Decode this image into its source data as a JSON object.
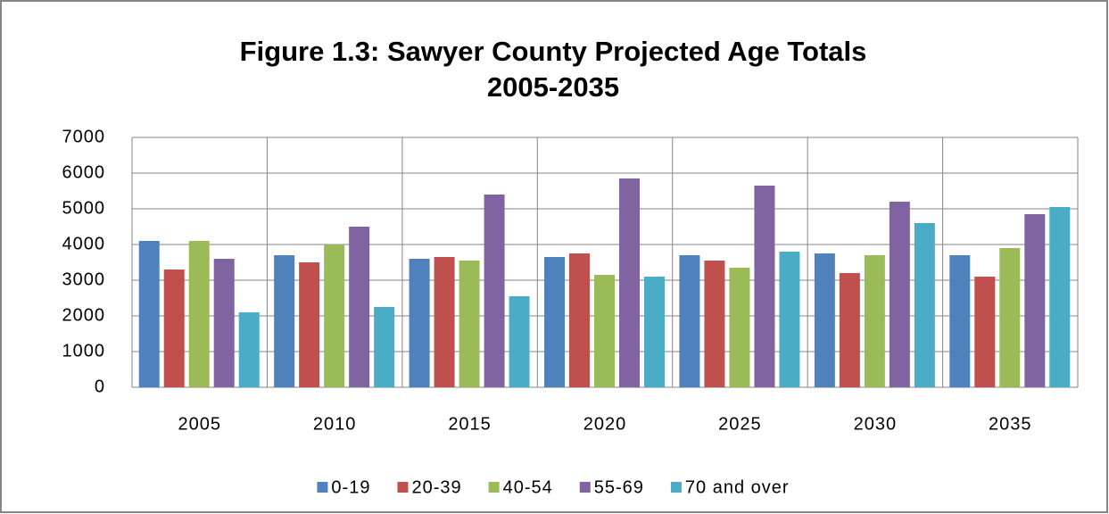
{
  "chart_data": {
    "type": "bar",
    "title": "Figure 1.3: Sawyer County Projected Age Totals",
    "subtitle": "2005-2035",
    "categories": [
      "2005",
      "2010",
      "2015",
      "2020",
      "2025",
      "2030",
      "2035"
    ],
    "series": [
      {
        "name": "0-19",
        "color": "#4f81bd",
        "values": [
          4100,
          3700,
          3600,
          3650,
          3700,
          3750,
          3700
        ]
      },
      {
        "name": "20-39",
        "color": "#c0504d",
        "values": [
          3300,
          3500,
          3650,
          3750,
          3550,
          3200,
          3100
        ]
      },
      {
        "name": "40-54",
        "color": "#9bbb59",
        "values": [
          4100,
          4000,
          3550,
          3150,
          3350,
          3700,
          3900
        ]
      },
      {
        "name": "55-69",
        "color": "#8064a2",
        "values": [
          3600,
          4500,
          5400,
          5850,
          5650,
          5200,
          4850
        ]
      },
      {
        "name": "70 and over",
        "color": "#4bacc6",
        "values": [
          2100,
          2250,
          2550,
          3100,
          3800,
          4600,
          5050
        ]
      }
    ],
    "ylim": [
      0,
      7000
    ],
    "yticks": [
      0,
      1000,
      2000,
      3000,
      4000,
      5000,
      6000,
      7000
    ],
    "grid": true,
    "legend": "bottom"
  }
}
